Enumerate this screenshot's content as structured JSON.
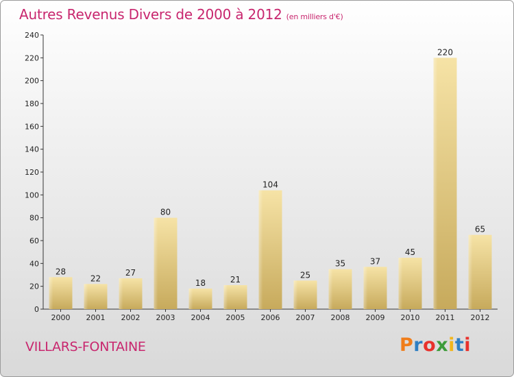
{
  "header": {
    "title": "Autres Revenus Divers de 2000 à 2012",
    "unit": "(en milliers d'€)"
  },
  "footer": {
    "commune": "VILLARS-FONTAINE",
    "brand_letters": [
      "P",
      "r",
      "o",
      "x",
      "i",
      "t",
      "i"
    ],
    "brand_colors": [
      "#f07d1a",
      "#2f7fc3",
      "#e8312c",
      "#3d9b3a",
      "#f2b61c",
      "#2f7fc3",
      "#e8312c"
    ]
  },
  "colors": {
    "accent": "#c8266e",
    "bar_light": "#f5e2a4",
    "bar_dark": "#c9ac5e"
  },
  "chart_data": {
    "type": "bar",
    "categories": [
      "2000",
      "2001",
      "2002",
      "2003",
      "2004",
      "2005",
      "2006",
      "2007",
      "2008",
      "2009",
      "2010",
      "2011",
      "2012"
    ],
    "values": [
      28,
      22,
      27,
      80,
      18,
      21,
      104,
      25,
      35,
      37,
      45,
      220,
      65
    ],
    "ylim": [
      0,
      240
    ],
    "yticks": [
      0,
      20,
      40,
      60,
      80,
      100,
      120,
      140,
      160,
      180,
      200,
      220,
      240
    ],
    "grid": false,
    "data_labels": true
  }
}
